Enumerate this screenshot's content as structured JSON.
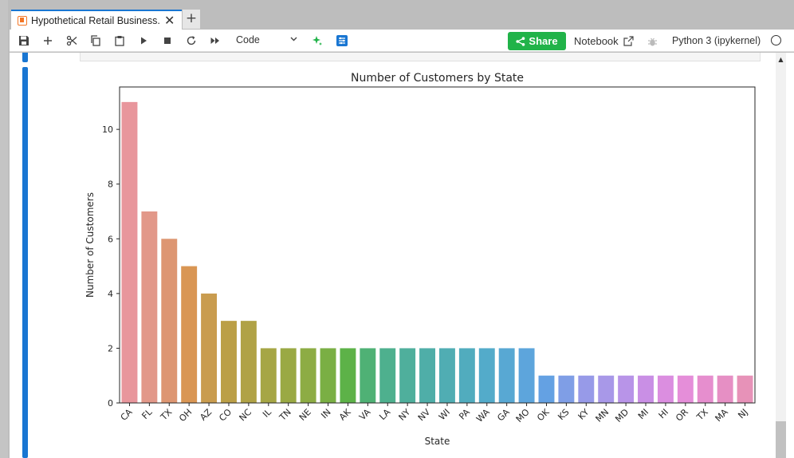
{
  "tab": {
    "title": "Hypothetical Retail Business.",
    "close": "✕",
    "new": "+"
  },
  "toolbar": {
    "cell_type": "Code",
    "share_label": "Share",
    "notebook_link": "Notebook",
    "kernel_name": "Python 3 (ipykernel)"
  },
  "chart_data": {
    "type": "bar",
    "title": "Number of Customers by State",
    "xlabel": "State",
    "ylabel": "Number of Customers",
    "ylim": [
      0,
      11.55
    ],
    "yticks": [
      0,
      2,
      4,
      6,
      8,
      10
    ],
    "categories": [
      "CA",
      "FL",
      "TX",
      "OH",
      "AZ",
      "CO",
      "NC",
      "IL",
      "TN",
      "NE",
      "IN",
      "AK",
      "VA",
      "LA",
      "NY",
      "NV",
      "WI",
      "PA",
      "WA",
      "GA",
      "MO",
      "OK",
      "KS",
      "KY",
      "MN",
      "MD",
      "MI",
      "HI",
      "OR",
      "TX",
      "MA",
      "NJ"
    ],
    "values": [
      11,
      7,
      6,
      5,
      4,
      3,
      3,
      2,
      2,
      2,
      2,
      2,
      2,
      2,
      2,
      2,
      2,
      2,
      2,
      2,
      2,
      1,
      1,
      1,
      1,
      1,
      1,
      1,
      1,
      1,
      1,
      1
    ],
    "colors": [
      "#e8969c",
      "#e29889",
      "#dd9672",
      "#d99654",
      "#c99c4f",
      "#bb9f47",
      "#b0a246",
      "#a6a645",
      "#9aa944",
      "#8dac44",
      "#7aaf44",
      "#5db248",
      "#4fb175",
      "#4eb08e",
      "#4faf9c",
      "#4faea8",
      "#50adb3",
      "#51acbe",
      "#53abca",
      "#58a8d3",
      "#5da5dc",
      "#64a1e3",
      "#7f9ee6",
      "#979ae8",
      "#a898e8",
      "#b894e8",
      "#c98fe5",
      "#db8ee0",
      "#e58ed9",
      "#e68ece",
      "#e68fc4",
      "#e792b8"
    ],
    "grid": false
  }
}
